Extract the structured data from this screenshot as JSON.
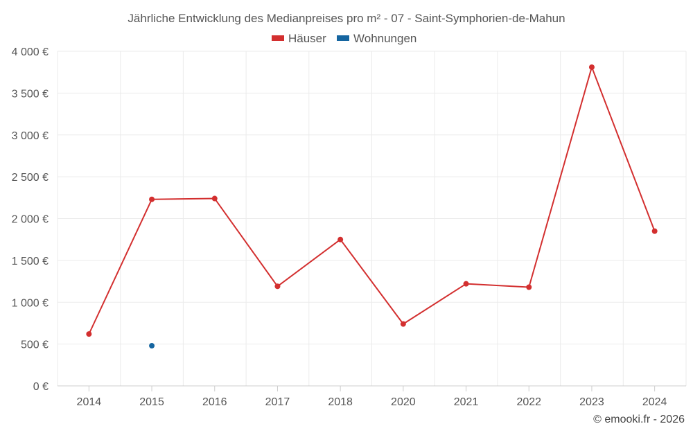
{
  "chart_data": {
    "type": "line",
    "title": "Jährliche Entwicklung des Medianpreises pro m² - 07 - Saint-Symphorien-de-Mahun",
    "categories": [
      "2014",
      "2015",
      "2016",
      "2017",
      "2018",
      "2020",
      "2021",
      "2022",
      "2023",
      "2024"
    ],
    "series": [
      {
        "name": "Häuser",
        "color": "#d32f2f",
        "values": [
          620,
          2230,
          2240,
          1190,
          1750,
          740,
          1220,
          1180,
          3810,
          1850
        ]
      },
      {
        "name": "Wohnungen",
        "color": "#1565a0",
        "values": [
          null,
          480,
          null,
          null,
          null,
          null,
          null,
          null,
          null,
          null
        ]
      }
    ],
    "ylim": [
      0,
      4000
    ],
    "yticks": [
      0,
      500,
      1000,
      1500,
      2000,
      2500,
      3000,
      3500,
      4000
    ],
    "ytick_labels": [
      "0 €",
      "500 €",
      "1 000 €",
      "1 500 €",
      "2 000 €",
      "2 500 €",
      "3 000 €",
      "3 500 €",
      "4 000 €"
    ],
    "grid": true,
    "legend_position": "top-center"
  },
  "credit": "© emooki.fr - 2026"
}
